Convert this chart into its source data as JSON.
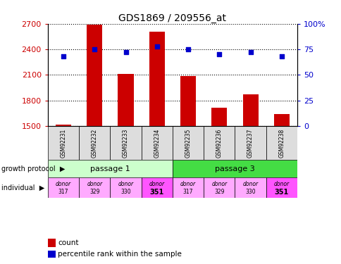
{
  "title": "GDS1869 / 209556_at",
  "samples": [
    "GSM92231",
    "GSM92232",
    "GSM92233",
    "GSM92234",
    "GSM92235",
    "GSM92236",
    "GSM92237",
    "GSM92238"
  ],
  "counts": [
    1519,
    2693,
    2108,
    2610,
    2088,
    1712,
    1870,
    1638
  ],
  "percentile_ranks": [
    68,
    75,
    72,
    78,
    75,
    70,
    72,
    68
  ],
  "ylim_left": [
    1500,
    2700
  ],
  "ylim_right": [
    0,
    100
  ],
  "yticks_left": [
    1500,
    1800,
    2100,
    2400,
    2700
  ],
  "yticks_right": [
    0,
    25,
    50,
    75,
    100
  ],
  "bar_color": "#cc0000",
  "scatter_color": "#0000cc",
  "passage1_color": "#ccffcc",
  "passage3_color": "#44dd44",
  "passages": [
    {
      "label": "passage 1",
      "start": 0,
      "end": 4
    },
    {
      "label": "passage 3",
      "start": 4,
      "end": 8
    }
  ],
  "individuals": [
    "donor\n317",
    "donor\n329",
    "donor\n330",
    "donor\n351",
    "donor\n317",
    "donor\n329",
    "donor\n330",
    "donor\n351"
  ],
  "indiv_colors": [
    "#ffaaff",
    "#ffaaff",
    "#ffaaff",
    "#ff55ff",
    "#ffaaff",
    "#ffaaff",
    "#ffaaff",
    "#ff55ff"
  ],
  "sample_box_color": "#dddddd",
  "axis_label_left_color": "#cc0000",
  "axis_label_right_color": "#0000cc",
  "growth_protocol_label": "growth protocol",
  "individual_label": "individual"
}
